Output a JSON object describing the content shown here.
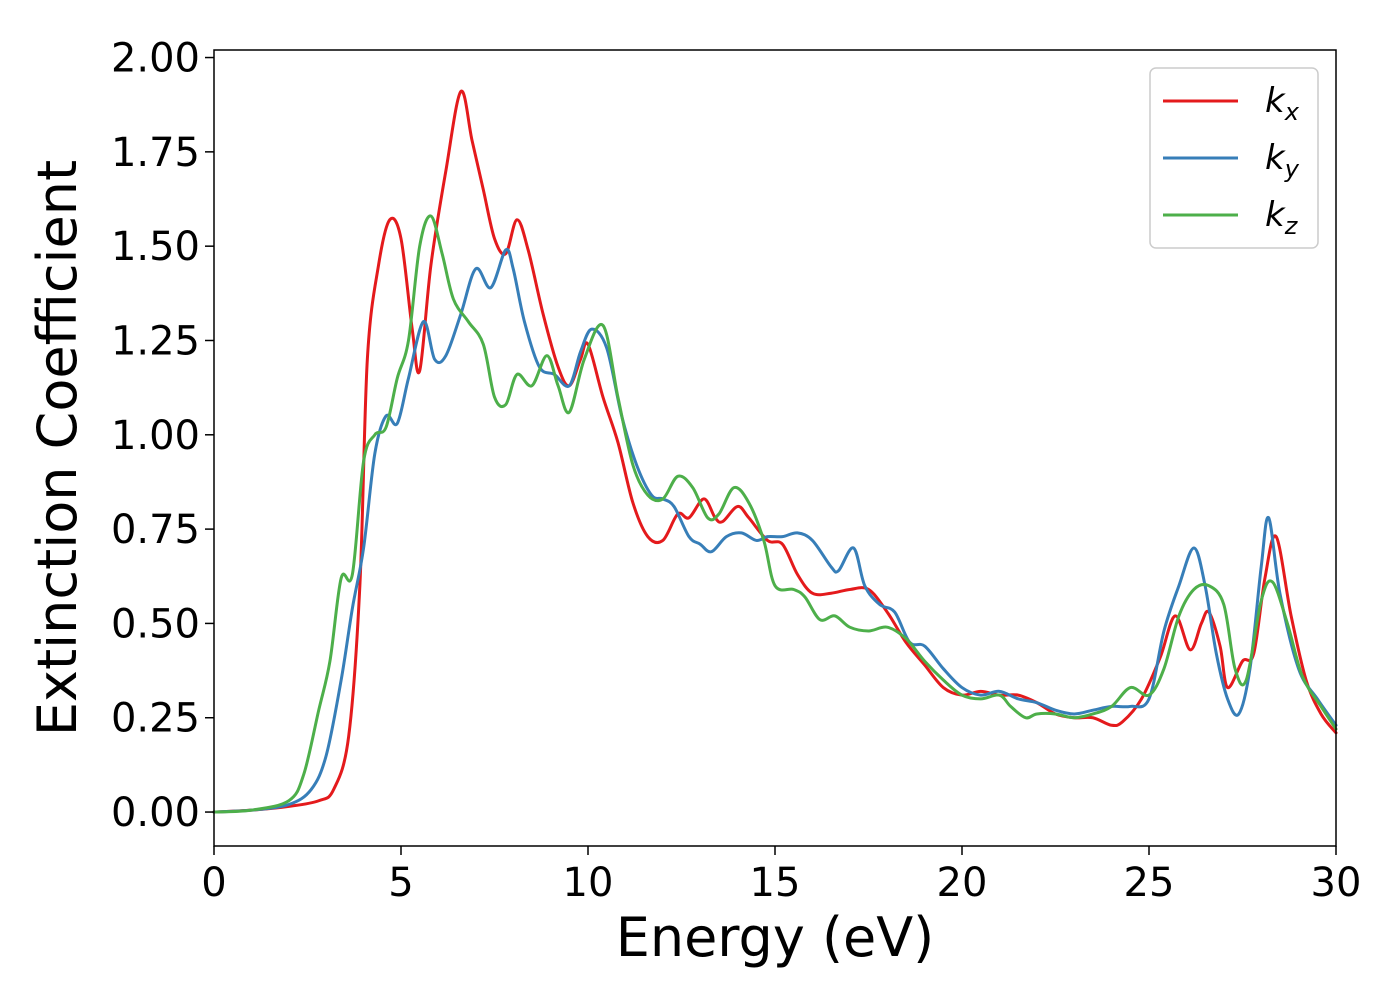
{
  "chart_data": {
    "type": "line",
    "title": "",
    "xlabel": "Energy (eV)",
    "ylabel": "Extinction Coefficient",
    "xlim": [
      0,
      30
    ],
    "ylim": [
      -0.09,
      2.02
    ],
    "xticks": [
      "0",
      "5",
      "10",
      "15",
      "20",
      "25",
      "30"
    ],
    "xtick_values": [
      0,
      5,
      10,
      15,
      20,
      25,
      30
    ],
    "yticks": [
      "0.00",
      "0.25",
      "0.50",
      "0.75",
      "1.00",
      "1.25",
      "1.50",
      "1.75",
      "2.00"
    ],
    "ytick_values": [
      0,
      0.25,
      0.5,
      0.75,
      1.0,
      1.25,
      1.5,
      1.75,
      2.0
    ],
    "grid": false,
    "legend_position": "top-right",
    "series": [
      {
        "name": "k",
        "subscript": "x",
        "color": "#e41a1c",
        "points": [
          [
            0,
            0
          ],
          [
            1,
            0.005
          ],
          [
            2,
            0.015
          ],
          [
            2.8,
            0.03
          ],
          [
            3.2,
            0.06
          ],
          [
            3.6,
            0.2
          ],
          [
            3.9,
            0.6
          ],
          [
            4.1,
            1.2
          ],
          [
            4.4,
            1.45
          ],
          [
            4.7,
            1.57
          ],
          [
            5.0,
            1.52
          ],
          [
            5.3,
            1.28
          ],
          [
            5.5,
            1.17
          ],
          [
            5.8,
            1.45
          ],
          [
            6.2,
            1.7
          ],
          [
            6.6,
            1.91
          ],
          [
            6.9,
            1.78
          ],
          [
            7.2,
            1.65
          ],
          [
            7.5,
            1.52
          ],
          [
            7.8,
            1.48
          ],
          [
            8.1,
            1.57
          ],
          [
            8.4,
            1.49
          ],
          [
            8.8,
            1.32
          ],
          [
            9.2,
            1.18
          ],
          [
            9.5,
            1.13
          ],
          [
            9.8,
            1.2
          ],
          [
            10.0,
            1.24
          ],
          [
            10.4,
            1.1
          ],
          [
            10.8,
            0.98
          ],
          [
            11.2,
            0.82
          ],
          [
            11.6,
            0.73
          ],
          [
            12.0,
            0.72
          ],
          [
            12.4,
            0.79
          ],
          [
            12.7,
            0.78
          ],
          [
            13.1,
            0.83
          ],
          [
            13.4,
            0.78
          ],
          [
            13.6,
            0.77
          ],
          [
            14.0,
            0.81
          ],
          [
            14.3,
            0.78
          ],
          [
            14.8,
            0.72
          ],
          [
            15.2,
            0.71
          ],
          [
            15.6,
            0.63
          ],
          [
            16.0,
            0.58
          ],
          [
            16.5,
            0.58
          ],
          [
            17.0,
            0.59
          ],
          [
            17.5,
            0.59
          ],
          [
            18.0,
            0.53
          ],
          [
            18.5,
            0.45
          ],
          [
            19.0,
            0.39
          ],
          [
            19.5,
            0.33
          ],
          [
            20.0,
            0.31
          ],
          [
            20.5,
            0.32
          ],
          [
            21.0,
            0.31
          ],
          [
            21.5,
            0.31
          ],
          [
            22.0,
            0.29
          ],
          [
            22.5,
            0.26
          ],
          [
            23.0,
            0.25
          ],
          [
            23.5,
            0.25
          ],
          [
            24.0,
            0.23
          ],
          [
            24.3,
            0.24
          ],
          [
            24.8,
            0.3
          ],
          [
            25.3,
            0.41
          ],
          [
            25.7,
            0.52
          ],
          [
            26.1,
            0.43
          ],
          [
            26.4,
            0.5
          ],
          [
            26.6,
            0.53
          ],
          [
            26.9,
            0.44
          ],
          [
            27.1,
            0.33
          ],
          [
            27.5,
            0.4
          ],
          [
            27.8,
            0.42
          ],
          [
            28.1,
            0.62
          ],
          [
            28.4,
            0.73
          ],
          [
            28.8,
            0.52
          ],
          [
            29.2,
            0.35
          ],
          [
            29.6,
            0.26
          ],
          [
            30.0,
            0.21
          ]
        ]
      },
      {
        "name": "k",
        "subscript": "y",
        "color": "#377eb8",
        "points": [
          [
            0,
            0
          ],
          [
            1,
            0.005
          ],
          [
            2,
            0.02
          ],
          [
            2.6,
            0.06
          ],
          [
            3.0,
            0.15
          ],
          [
            3.4,
            0.35
          ],
          [
            3.7,
            0.54
          ],
          [
            4.0,
            0.7
          ],
          [
            4.3,
            0.95
          ],
          [
            4.6,
            1.05
          ],
          [
            4.9,
            1.03
          ],
          [
            5.2,
            1.15
          ],
          [
            5.6,
            1.3
          ],
          [
            5.9,
            1.2
          ],
          [
            6.2,
            1.21
          ],
          [
            6.6,
            1.32
          ],
          [
            7.0,
            1.44
          ],
          [
            7.4,
            1.39
          ],
          [
            7.8,
            1.49
          ],
          [
            8.0,
            1.44
          ],
          [
            8.3,
            1.3
          ],
          [
            8.7,
            1.18
          ],
          [
            9.1,
            1.16
          ],
          [
            9.5,
            1.13
          ],
          [
            9.8,
            1.22
          ],
          [
            10.1,
            1.28
          ],
          [
            10.5,
            1.23
          ],
          [
            10.9,
            1.05
          ],
          [
            11.3,
            0.92
          ],
          [
            11.7,
            0.84
          ],
          [
            12.0,
            0.83
          ],
          [
            12.3,
            0.81
          ],
          [
            12.7,
            0.73
          ],
          [
            13.0,
            0.71
          ],
          [
            13.3,
            0.69
          ],
          [
            13.7,
            0.73
          ],
          [
            14.1,
            0.74
          ],
          [
            14.5,
            0.72
          ],
          [
            14.8,
            0.73
          ],
          [
            15.2,
            0.73
          ],
          [
            15.6,
            0.74
          ],
          [
            16.0,
            0.72
          ],
          [
            16.5,
            0.65
          ],
          [
            16.7,
            0.64
          ],
          [
            17.1,
            0.7
          ],
          [
            17.4,
            0.6
          ],
          [
            17.8,
            0.55
          ],
          [
            18.2,
            0.53
          ],
          [
            18.6,
            0.45
          ],
          [
            19.0,
            0.44
          ],
          [
            19.5,
            0.38
          ],
          [
            20.0,
            0.33
          ],
          [
            20.5,
            0.31
          ],
          [
            21.0,
            0.32
          ],
          [
            21.5,
            0.3
          ],
          [
            22.0,
            0.29
          ],
          [
            22.5,
            0.27
          ],
          [
            23.0,
            0.26
          ],
          [
            23.5,
            0.27
          ],
          [
            24.0,
            0.28
          ],
          [
            24.5,
            0.28
          ],
          [
            25.0,
            0.3
          ],
          [
            25.4,
            0.48
          ],
          [
            25.8,
            0.6
          ],
          [
            26.2,
            0.7
          ],
          [
            26.5,
            0.6
          ],
          [
            26.8,
            0.42
          ],
          [
            27.1,
            0.3
          ],
          [
            27.4,
            0.26
          ],
          [
            27.7,
            0.38
          ],
          [
            28.0,
            0.65
          ],
          [
            28.2,
            0.78
          ],
          [
            28.5,
            0.58
          ],
          [
            29.0,
            0.38
          ],
          [
            29.5,
            0.3
          ],
          [
            30.0,
            0.23
          ]
        ]
      },
      {
        "name": "k",
        "subscript": "z",
        "color": "#4daf4a",
        "points": [
          [
            0,
            0
          ],
          [
            1,
            0.005
          ],
          [
            2,
            0.03
          ],
          [
            2.4,
            0.1
          ],
          [
            2.8,
            0.27
          ],
          [
            3.1,
            0.4
          ],
          [
            3.4,
            0.62
          ],
          [
            3.7,
            0.63
          ],
          [
            4.0,
            0.93
          ],
          [
            4.3,
            1.0
          ],
          [
            4.6,
            1.02
          ],
          [
            4.9,
            1.15
          ],
          [
            5.2,
            1.25
          ],
          [
            5.5,
            1.5
          ],
          [
            5.8,
            1.58
          ],
          [
            6.1,
            1.48
          ],
          [
            6.4,
            1.36
          ],
          [
            6.8,
            1.3
          ],
          [
            7.2,
            1.24
          ],
          [
            7.5,
            1.1
          ],
          [
            7.8,
            1.08
          ],
          [
            8.1,
            1.16
          ],
          [
            8.5,
            1.13
          ],
          [
            8.9,
            1.21
          ],
          [
            9.2,
            1.13
          ],
          [
            9.5,
            1.06
          ],
          [
            9.9,
            1.2
          ],
          [
            10.4,
            1.29
          ],
          [
            10.8,
            1.1
          ],
          [
            11.2,
            0.92
          ],
          [
            11.6,
            0.84
          ],
          [
            12.0,
            0.83
          ],
          [
            12.4,
            0.89
          ],
          [
            12.8,
            0.86
          ],
          [
            13.2,
            0.78
          ],
          [
            13.5,
            0.79
          ],
          [
            13.9,
            0.86
          ],
          [
            14.3,
            0.82
          ],
          [
            14.7,
            0.72
          ],
          [
            15.0,
            0.6
          ],
          [
            15.5,
            0.59
          ],
          [
            15.8,
            0.57
          ],
          [
            16.2,
            0.51
          ],
          [
            16.6,
            0.52
          ],
          [
            17.0,
            0.49
          ],
          [
            17.5,
            0.48
          ],
          [
            18.0,
            0.49
          ],
          [
            18.5,
            0.46
          ],
          [
            19.0,
            0.4
          ],
          [
            19.5,
            0.35
          ],
          [
            20.0,
            0.31
          ],
          [
            20.5,
            0.3
          ],
          [
            21.0,
            0.31
          ],
          [
            21.3,
            0.28
          ],
          [
            21.7,
            0.25
          ],
          [
            22.0,
            0.26
          ],
          [
            22.5,
            0.26
          ],
          [
            23.0,
            0.25
          ],
          [
            23.5,
            0.26
          ],
          [
            24.0,
            0.28
          ],
          [
            24.5,
            0.33
          ],
          [
            25.0,
            0.31
          ],
          [
            25.4,
            0.38
          ],
          [
            25.8,
            0.52
          ],
          [
            26.2,
            0.59
          ],
          [
            26.6,
            0.6
          ],
          [
            27.0,
            0.55
          ],
          [
            27.3,
            0.38
          ],
          [
            27.6,
            0.35
          ],
          [
            28.0,
            0.56
          ],
          [
            28.3,
            0.61
          ],
          [
            28.7,
            0.5
          ],
          [
            29.1,
            0.36
          ],
          [
            29.6,
            0.28
          ],
          [
            30.0,
            0.22
          ]
        ]
      }
    ]
  }
}
